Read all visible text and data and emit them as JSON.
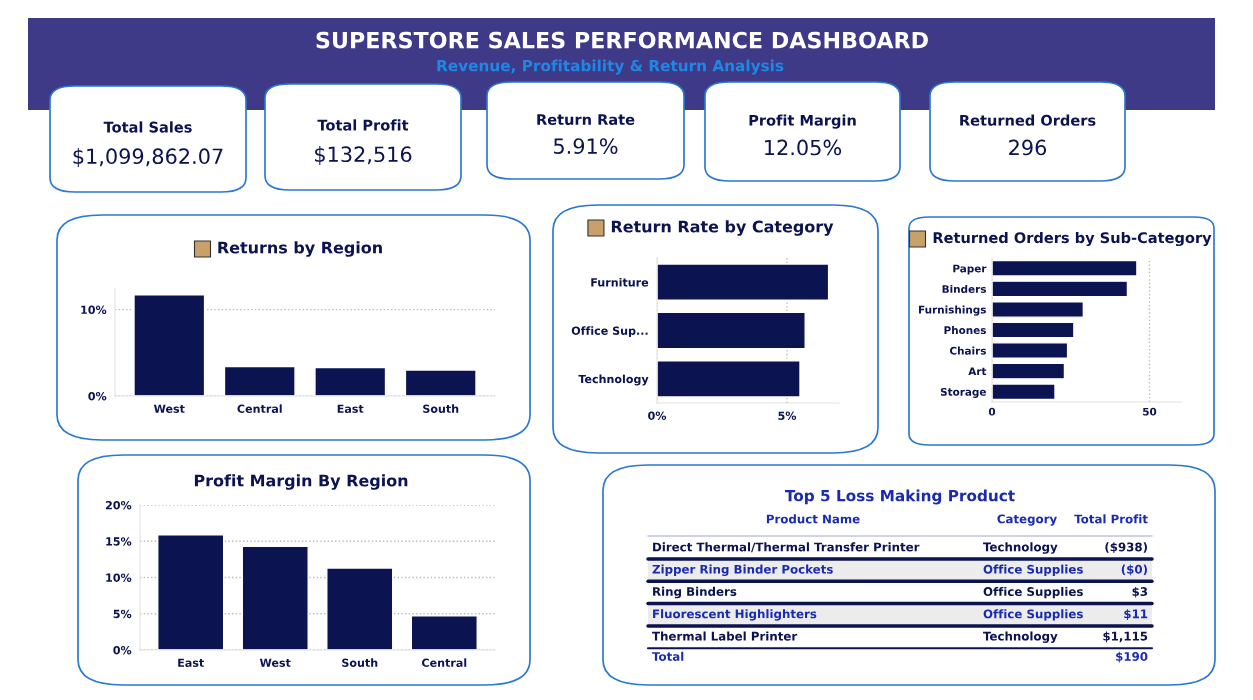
{
  "chart_data": [
    {
      "type": "other",
      "title": "SUPERSTORE SALES PERFORMANCE DASHBOARD",
      "subtitle": "Revenue, Profitability & Return Analysis",
      "annotations": [
        "Total Sales",
        "$1,099,862.07",
        "Total Profit",
        "$132,516",
        "Return Rate",
        "5.91%",
        "Profit Margin",
        "12.05%",
        "Returned Orders",
        "296"
      ]
    },
    {
      "type": "bar",
      "title": "Returns by Region",
      "categories": [
        "West",
        "Central",
        "East",
        "South"
      ],
      "values": [
        11.7,
        3.4,
        3.3,
        3.0
      ],
      "color": "#0b1350",
      "ylim": [
        0,
        12.5
      ],
      "yticks": [
        {
          "value": 0,
          "label": "0%"
        },
        {
          "value": 10,
          "label": "10%"
        }
      ],
      "grid": "y"
    },
    {
      "type": "bar",
      "orientation": "horizontal",
      "title": "Return Rate by Category",
      "categories": [
        "Furniture",
        "Office Sup...",
        "Technology"
      ],
      "values": [
        6.6,
        5.7,
        5.5
      ],
      "color": "#0b1350",
      "xlim": [
        0,
        7
      ],
      "xticks": [
        {
          "value": 0,
          "label": "0%"
        },
        {
          "value": 5,
          "label": "5%"
        }
      ],
      "grid": "x"
    },
    {
      "type": "bar",
      "orientation": "horizontal",
      "title": "Returned Orders by Sub-Category",
      "categories": [
        "Paper",
        "Binders",
        "Furnishings",
        "Phones",
        "Chairs",
        "Art",
        "Storage"
      ],
      "values": [
        46,
        43,
        29,
        26,
        24,
        23,
        20
      ],
      "color": "#0b1350",
      "xlim": [
        0,
        60
      ],
      "xticks": [
        0,
        50
      ],
      "grid": "x"
    },
    {
      "type": "bar",
      "title": "Profit Margin By Region",
      "categories": [
        "East",
        "West",
        "South",
        "Central"
      ],
      "values": [
        15.9,
        14.3,
        11.3,
        4.7
      ],
      "color": "#0b1350",
      "ylim": [
        0,
        20
      ],
      "yticks": [
        {
          "value": 0,
          "label": "0%"
        },
        {
          "value": 5,
          "label": "5%"
        },
        {
          "value": 10,
          "label": "10%"
        },
        {
          "value": 15,
          "label": "15%"
        },
        {
          "value": 20,
          "label": "20%"
        }
      ],
      "grid": "y"
    },
    {
      "type": "other",
      "title": "Top 5 Loss Making Product",
      "categories": [
        "Product Name",
        "Category",
        "Total Profit"
      ],
      "y_categories": [
        "Direct Thermal/Thermal Transfer Printer",
        "Zipper Ring Binder Pockets",
        "Ring Binders",
        "Fluorescent Highlighters",
        "Thermal Label Printer"
      ],
      "y2_categories": [
        "Technology",
        "Office Supplies",
        "Office Supplies",
        "Office Supplies",
        "Technology"
      ],
      "value_labels": [
        "($938)",
        "($0)",
        "$3",
        "$11",
        "$1,115"
      ],
      "annotations": [
        "Total"
      ],
      "totals": [
        "$190"
      ]
    }
  ]
}
